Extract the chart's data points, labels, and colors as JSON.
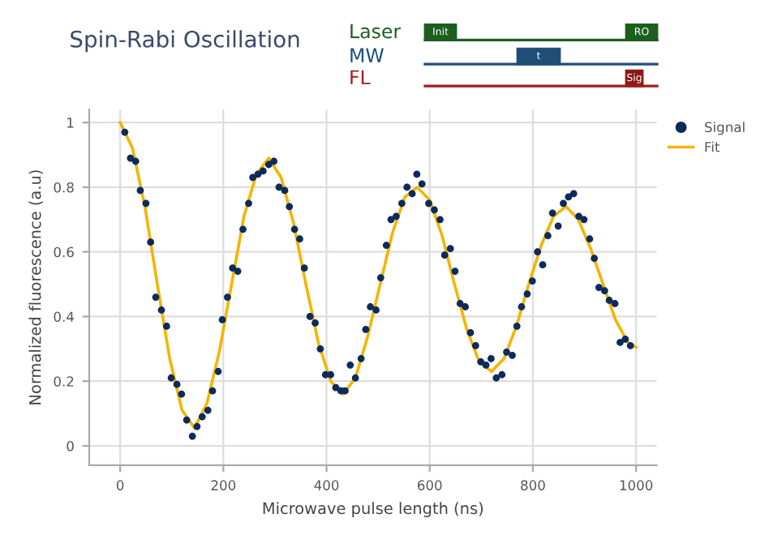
{
  "chart_data": {
    "type": "scatter",
    "title": "Spin-Rabi Oscillation",
    "xlabel": "Microwave pulse length (ns)",
    "ylabel": "Normalized fluorescence (a.u)",
    "annotations": [
      "Laser",
      "MW",
      "FL",
      "Init",
      "RO",
      "t",
      "Sig"
    ],
    "xlim": [
      -60,
      1040
    ],
    "ylim": [
      -0.06,
      1.04
    ],
    "xticks": [
      0,
      200,
      400,
      600,
      800,
      1000
    ],
    "yticks": [
      0,
      0.2,
      0.4,
      0.6,
      0.8,
      1
    ],
    "grid": true,
    "legend": "top right",
    "marker": "circle",
    "series": [
      {
        "name": "Signal",
        "color": "#0d2a5c",
        "x": [
          9,
          20,
          30,
          39,
          50,
          59,
          69,
          80,
          90,
          99,
          110,
          119,
          129,
          140,
          149,
          159,
          170,
          179,
          190,
          198,
          208,
          218,
          228,
          238,
          249,
          257,
          267,
          277,
          288,
          298,
          308,
          319,
          328,
          338,
          348,
          357,
          368,
          378,
          388,
          398,
          408,
          418,
          428,
          436,
          446,
          456,
          467,
          476,
          485,
          496,
          505,
          516,
          525,
          535,
          546,
          556,
          566,
          575,
          585,
          598,
          609,
          620,
          629,
          640,
          649,
          659,
          669,
          679,
          689,
          699,
          709,
          719,
          729,
          740,
          749,
          760,
          769,
          778,
          789,
          799,
          809,
          819,
          829,
          838,
          849,
          859,
          869,
          879,
          889,
          899,
          910,
          919,
          928,
          939,
          948,
          959,
          969,
          979,
          989
        ],
        "values": [
          0.97,
          0.89,
          0.88,
          0.79,
          0.75,
          0.63,
          0.46,
          0.42,
          0.37,
          0.21,
          0.19,
          0.16,
          0.08,
          0.03,
          0.06,
          0.09,
          0.11,
          0.17,
          0.23,
          0.39,
          0.46,
          0.55,
          0.54,
          0.67,
          0.75,
          0.83,
          0.84,
          0.85,
          0.87,
          0.88,
          0.8,
          0.79,
          0.74,
          0.67,
          0.64,
          0.55,
          0.4,
          0.38,
          0.3,
          0.22,
          0.22,
          0.18,
          0.17,
          0.17,
          0.25,
          0.21,
          0.27,
          0.36,
          0.43,
          0.42,
          0.52,
          0.62,
          0.7,
          0.71,
          0.75,
          0.8,
          0.78,
          0.84,
          0.81,
          0.75,
          0.73,
          0.7,
          0.59,
          0.61,
          0.54,
          0.44,
          0.43,
          0.35,
          0.31,
          0.26,
          0.25,
          0.27,
          0.21,
          0.22,
          0.29,
          0.28,
          0.37,
          0.43,
          0.47,
          0.51,
          0.6,
          0.56,
          0.65,
          0.72,
          0.68,
          0.75,
          0.77,
          0.78,
          0.71,
          0.7,
          0.64,
          0.58,
          0.49,
          0.48,
          0.45,
          0.44,
          0.32,
          0.33,
          0.31
        ]
      },
      {
        "name": "Fit",
        "type": "line",
        "color": "#f5b400",
        "marker": "none",
        "x": [
          0,
          24,
          48,
          72,
          96,
          120,
          144,
          168,
          192,
          216,
          240,
          264,
          288,
          312,
          336,
          360,
          384,
          408,
          432,
          456,
          480,
          504,
          528,
          552,
          576,
          600,
          624,
          648,
          672,
          696,
          720,
          744,
          768,
          792,
          816,
          840,
          864,
          888,
          912,
          936,
          960,
          984,
          1000
        ],
        "values": [
          1.0,
          0.92,
          0.74,
          0.5,
          0.27,
          0.11,
          0.055,
          0.13,
          0.29,
          0.5,
          0.71,
          0.84,
          0.89,
          0.83,
          0.69,
          0.5,
          0.32,
          0.2,
          0.16,
          0.21,
          0.34,
          0.5,
          0.66,
          0.77,
          0.8,
          0.76,
          0.65,
          0.5,
          0.36,
          0.26,
          0.23,
          0.27,
          0.37,
          0.5,
          0.62,
          0.71,
          0.74,
          0.7,
          0.61,
          0.5,
          0.39,
          0.32,
          0.305
        ]
      }
    ]
  }
}
